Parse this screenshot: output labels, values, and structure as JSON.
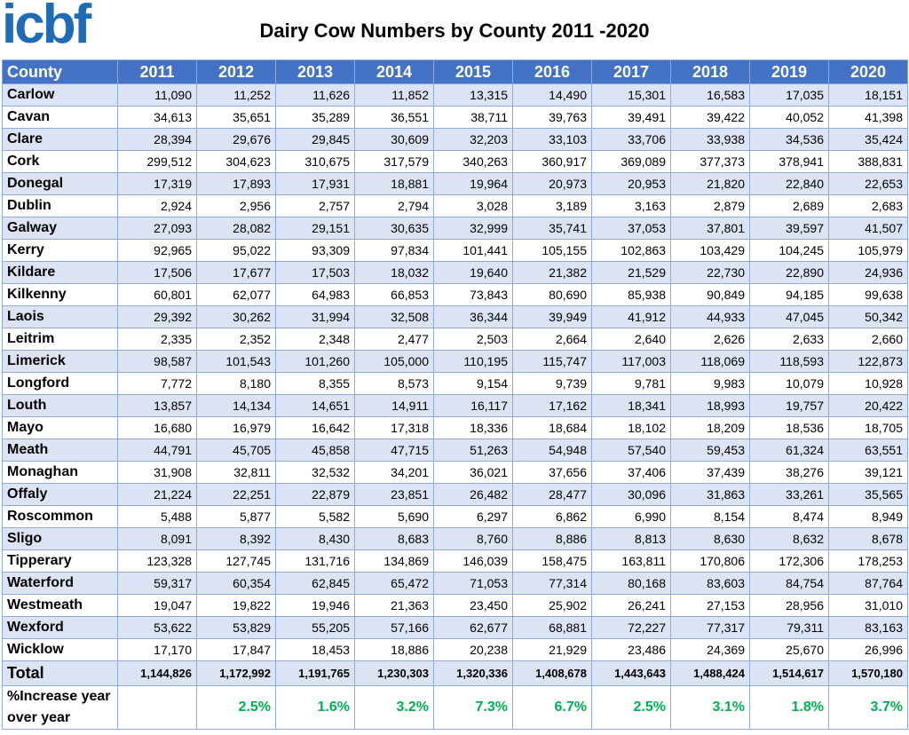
{
  "header": {
    "logo": "icbf",
    "title": "Dairy Cow Numbers by County 2011 -2020"
  },
  "table": {
    "columns": [
      "County",
      "2011",
      "2012",
      "2013",
      "2014",
      "2015",
      "2016",
      "2017",
      "2018",
      "2019",
      "2020"
    ],
    "rows": [
      [
        "Carlow",
        "11,090",
        "11,252",
        "11,626",
        "11,852",
        "13,315",
        "14,490",
        "15,301",
        "16,583",
        "17,035",
        "18,151"
      ],
      [
        "Cavan",
        "34,613",
        "35,651",
        "35,289",
        "36,551",
        "38,711",
        "39,763",
        "39,491",
        "39,422",
        "40,052",
        "41,398"
      ],
      [
        "Clare",
        "28,394",
        "29,676",
        "29,845",
        "30,609",
        "32,203",
        "33,103",
        "33,706",
        "33,938",
        "34,536",
        "35,424"
      ],
      [
        "Cork",
        "299,512",
        "304,623",
        "310,675",
        "317,579",
        "340,263",
        "360,917",
        "369,089",
        "377,373",
        "378,941",
        "388,831"
      ],
      [
        "Donegal",
        "17,319",
        "17,893",
        "17,931",
        "18,881",
        "19,964",
        "20,973",
        "20,953",
        "21,820",
        "22,840",
        "22,653"
      ],
      [
        "Dublin",
        "2,924",
        "2,956",
        "2,757",
        "2,794",
        "3,028",
        "3,189",
        "3,163",
        "2,879",
        "2,689",
        "2,683"
      ],
      [
        "Galway",
        "27,093",
        "28,082",
        "29,151",
        "30,635",
        "32,999",
        "35,741",
        "37,053",
        "37,801",
        "39,597",
        "41,507"
      ],
      [
        "Kerry",
        "92,965",
        "95,022",
        "93,309",
        "97,834",
        "101,441",
        "105,155",
        "102,863",
        "103,429",
        "104,245",
        "105,979"
      ],
      [
        "Kildare",
        "17,506",
        "17,677",
        "17,503",
        "18,032",
        "19,640",
        "21,382",
        "21,529",
        "22,730",
        "22,890",
        "24,936"
      ],
      [
        "Kilkenny",
        "60,801",
        "62,077",
        "64,983",
        "66,853",
        "73,843",
        "80,690",
        "85,938",
        "90,849",
        "94,185",
        "99,638"
      ],
      [
        "Laois",
        "29,392",
        "30,262",
        "31,994",
        "32,508",
        "36,344",
        "39,949",
        "41,912",
        "44,933",
        "47,045",
        "50,342"
      ],
      [
        "Leitrim",
        "2,335",
        "2,352",
        "2,348",
        "2,477",
        "2,503",
        "2,664",
        "2,640",
        "2,626",
        "2,633",
        "2,660"
      ],
      [
        "Limerick",
        "98,587",
        "101,543",
        "101,260",
        "105,000",
        "110,195",
        "115,747",
        "117,003",
        "118,069",
        "118,593",
        "122,873"
      ],
      [
        "Longford",
        "7,772",
        "8,180",
        "8,355",
        "8,573",
        "9,154",
        "9,739",
        "9,781",
        "9,983",
        "10,079",
        "10,928"
      ],
      [
        "Louth",
        "13,857",
        "14,134",
        "14,651",
        "14,911",
        "16,117",
        "17,162",
        "18,341",
        "18,993",
        "19,757",
        "20,422"
      ],
      [
        "Mayo",
        "16,680",
        "16,979",
        "16,642",
        "17,318",
        "18,336",
        "18,684",
        "18,102",
        "18,209",
        "18,536",
        "18,705"
      ],
      [
        "Meath",
        "44,791",
        "45,705",
        "45,858",
        "47,715",
        "51,263",
        "54,948",
        "57,540",
        "59,453",
        "61,324",
        "63,551"
      ],
      [
        "Monaghan",
        "31,908",
        "32,811",
        "32,532",
        "34,201",
        "36,021",
        "37,656",
        "37,406",
        "37,439",
        "38,276",
        "39,121"
      ],
      [
        "Offaly",
        "21,224",
        "22,251",
        "22,879",
        "23,851",
        "26,482",
        "28,477",
        "30,096",
        "31,863",
        "33,261",
        "35,565"
      ],
      [
        "Roscommon",
        "5,488",
        "5,877",
        "5,582",
        "5,690",
        "6,297",
        "6,862",
        "6,990",
        "8,154",
        "8,474",
        "8,949"
      ],
      [
        "Sligo",
        "8,091",
        "8,392",
        "8,430",
        "8,683",
        "8,760",
        "8,886",
        "8,813",
        "8,630",
        "8,632",
        "8,678"
      ],
      [
        "Tipperary",
        "123,328",
        "127,745",
        "131,716",
        "134,869",
        "146,039",
        "158,475",
        "163,811",
        "170,806",
        "172,306",
        "178,253"
      ],
      [
        "Waterford",
        "59,317",
        "60,354",
        "62,845",
        "65,472",
        "71,053",
        "77,314",
        "80,168",
        "83,603",
        "84,754",
        "87,764"
      ],
      [
        "Westmeath",
        "19,047",
        "19,822",
        "19,946",
        "21,363",
        "23,450",
        "25,902",
        "26,241",
        "27,153",
        "28,956",
        "31,010"
      ],
      [
        "Wexford",
        "53,622",
        "53,829",
        "55,205",
        "57,166",
        "62,677",
        "68,881",
        "72,227",
        "77,317",
        "79,311",
        "83,163"
      ],
      [
        "Wicklow",
        "17,170",
        "17,847",
        "18,453",
        "18,886",
        "20,238",
        "21,929",
        "23,486",
        "24,369",
        "25,670",
        "26,996"
      ]
    ],
    "total": [
      "Total",
      "1,144,826",
      "1,172,992",
      "1,191,765",
      "1,230,303",
      "1,320,336",
      "1,408,678",
      "1,443,643",
      "1,488,424",
      "1,514,617",
      "1,570,180"
    ],
    "increase": {
      "label": "%Increase year over year",
      "values": [
        "2.5%",
        "1.6%",
        "3.2%",
        "7.3%",
        "6.7%",
        "2.5%",
        "3.1%",
        "1.8%",
        "3.7%"
      ]
    }
  }
}
